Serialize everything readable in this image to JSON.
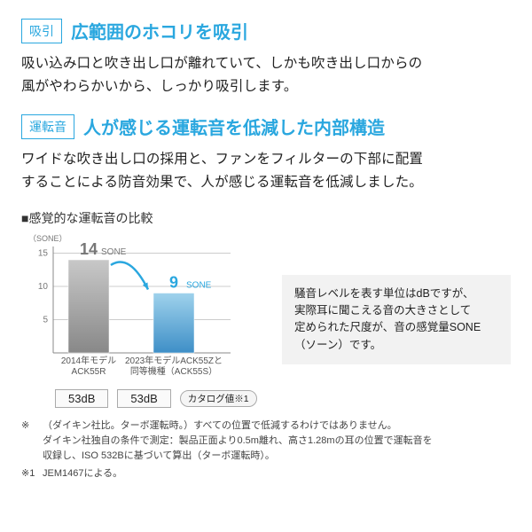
{
  "section1": {
    "tag": "吸引",
    "tag_color": "#2aa7df",
    "heading": "広範囲のホコリを吸引",
    "heading_color": "#2aa7df",
    "body_l1": "吸い込み口と吹き出し口が離れていて、しかも吹き出し口からの",
    "body_l2": "風がやわらかいから、しっかり吸引します。"
  },
  "section2": {
    "tag": "運転音",
    "tag_color": "#2aa7df",
    "heading": "人が感じる運転音を低減した内部構造",
    "heading_color": "#2aa7df",
    "body_l1": "ワイドな吹き出し口の採用と、ファンをフィルターの下部に配置",
    "body_l2": "することによる防音効果で、人が感じる運転音を低減しました。"
  },
  "chart": {
    "title": "■感覚的な運転音の比較",
    "y_unit": "（SONE）",
    "ylim": [
      0,
      16
    ],
    "yticks": [
      5,
      10,
      15
    ],
    "bars": [
      {
        "label_l1": "2014年モデル",
        "label_l2": "ACK55R",
        "value": 14,
        "value_label": "14",
        "unit": "SONE",
        "color_top": "#c8c8c8",
        "color_bot": "#888888"
      },
      {
        "label_l1": "2023年モデルACK55Zと",
        "label_l2": "同等機種（ACK55S）",
        "value": 9,
        "value_label": "9",
        "unit": "SONE",
        "color_top": "#9fd2ec",
        "color_bot": "#3e8fc7"
      }
    ],
    "arrow_color": "#2aa7df",
    "db_row": {
      "left": "53dB",
      "right": "53dB",
      "catalog": "カタログ値※1"
    },
    "axis_color": "#888888",
    "grid_color": "#cccccc",
    "label_fontsize": 10,
    "value_fontsize": 18
  },
  "infobox": {
    "l1": "騒音レベルを表す単位はdBですが、",
    "l2": "実際耳に聞こえる音の大きさとして",
    "l3": "定められた尺度が、音の感覚量SONE",
    "l4": "（ソーン）です。"
  },
  "footnotes": {
    "f1_mark": "※",
    "f1_l1": "（ダイキン社比。ターボ運転時。）すべての位置で低減するわけではありません。",
    "f1_l2": "ダイキン社独自の条件で測定：製品正面より0.5m離れ、高さ1.28mの耳の位置で運転音を",
    "f1_l3": "収録し、ISO 532Bに基づいて算出（ターボ運転時）。",
    "f2_mark": "※1",
    "f2": "JEM1467による。"
  }
}
